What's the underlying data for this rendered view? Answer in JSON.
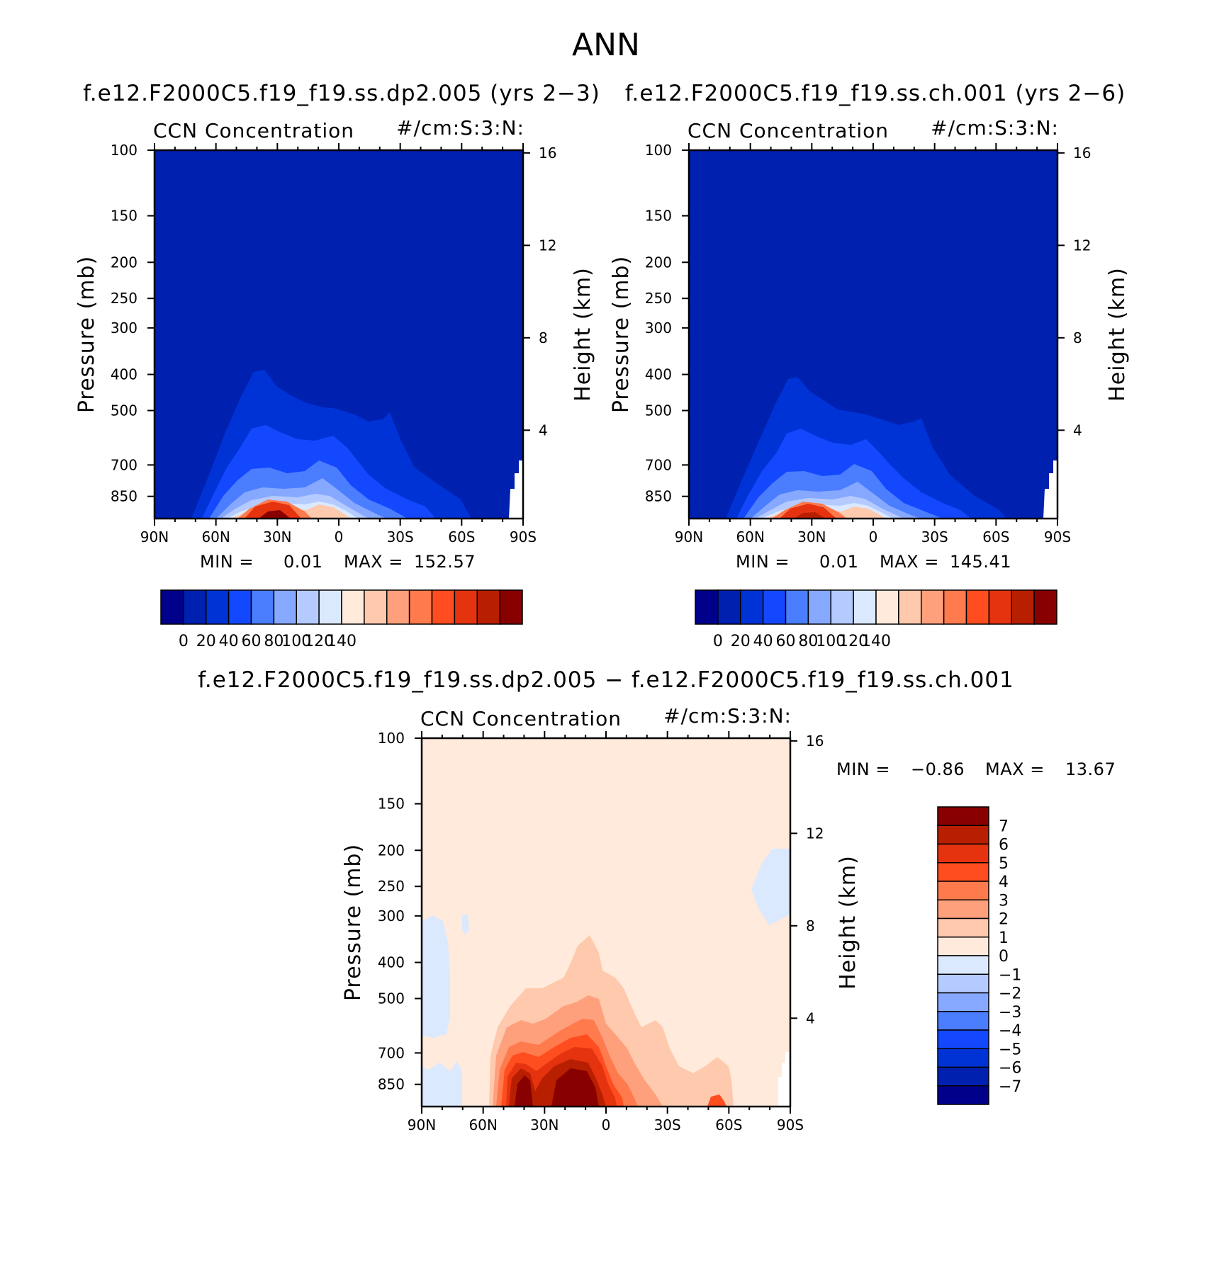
{
  "main_title": "ANN",
  "chart_data": [
    {
      "type": "contour",
      "id": "panel1",
      "case_title": "f.e12.F2000C5.f19_f19.ss.dp2.005 (yrs 2−3)",
      "variable": "CCN Concentration",
      "units": "#/cm:S:3:N:",
      "ylabel": "Pressure (mb)",
      "ylabel_right": "Height (km)",
      "xticks": [
        "90N",
        "60N",
        "30N",
        "0",
        "30S",
        "60S",
        "90S"
      ],
      "yticks": [
        "100",
        "150",
        "200",
        "250",
        "300",
        "400",
        "500",
        "700",
        "850"
      ],
      "yticks_right": [
        "16",
        "12",
        "8",
        "4"
      ],
      "stats": {
        "min_label": "MIN =",
        "min": "0.01",
        "max_label": "MAX =",
        "max": "152.57"
      },
      "colorbar_labels": [
        "0",
        "20",
        "40",
        "60",
        "80",
        "100",
        "120",
        "140"
      ],
      "colors": [
        "#00008a",
        "#0020b0",
        "#0033d6",
        "#1448ff",
        "#4b7dff",
        "#86a8ff",
        "#b5cbff",
        "#dbe9ff",
        "#ffeadb",
        "#ffc9ad",
        "#ffa07d",
        "#ff7a4d",
        "#ff4d1f",
        "#e6330f",
        "#b81f00",
        "#880000"
      ]
    },
    {
      "type": "contour",
      "id": "panel2",
      "case_title": "f.e12.F2000C5.f19_f19.ss.ch.001 (yrs 2−6)",
      "variable": "CCN Concentration",
      "units": "#/cm:S:3:N:",
      "ylabel": "Pressure (mb)",
      "ylabel_right": "Height (km)",
      "xticks": [
        "90N",
        "60N",
        "30N",
        "0",
        "30S",
        "60S",
        "90S"
      ],
      "yticks": [
        "100",
        "150",
        "200",
        "250",
        "300",
        "400",
        "500",
        "700",
        "850"
      ],
      "yticks_right": [
        "16",
        "12",
        "8",
        "4"
      ],
      "stats": {
        "min_label": "MIN =",
        "min": "0.01",
        "max_label": "MAX =",
        "max": "145.41"
      },
      "colorbar_labels": [
        "0",
        "20",
        "40",
        "60",
        "80",
        "100",
        "120",
        "140"
      ],
      "colors": [
        "#00008a",
        "#0020b0",
        "#0033d6",
        "#1448ff",
        "#4b7dff",
        "#86a8ff",
        "#b5cbff",
        "#dbe9ff",
        "#ffeadb",
        "#ffc9ad",
        "#ffa07d",
        "#ff7a4d",
        "#ff4d1f",
        "#e6330f",
        "#b81f00",
        "#880000"
      ]
    },
    {
      "type": "contour",
      "id": "panel3",
      "case_title": "f.e12.F2000C5.f19_f19.ss.dp2.005 − f.e12.F2000C5.f19_f19.ss.ch.001",
      "variable": "CCN Concentration",
      "units": "#/cm:S:3:N:",
      "ylabel": "Pressure (mb)",
      "ylabel_right": "Height (km)",
      "xticks": [
        "90N",
        "60N",
        "30N",
        "0",
        "30S",
        "60S",
        "90S"
      ],
      "yticks": [
        "100",
        "150",
        "200",
        "250",
        "300",
        "400",
        "500",
        "700",
        "850"
      ],
      "yticks_right": [
        "16",
        "12",
        "8",
        "4"
      ],
      "stats": {
        "min_label": "MIN =",
        "min": "−0.86",
        "max_label": "MAX =",
        "max": "13.67"
      },
      "colorbar_labels": [
        "7",
        "6",
        "5",
        "4",
        "3",
        "2",
        "1",
        "0",
        "−1",
        "−2",
        "−3",
        "−4",
        "−5",
        "−6",
        "−7"
      ],
      "colors": [
        "#880000",
        "#b81f00",
        "#e6330f",
        "#ff4d1f",
        "#ff7a4d",
        "#ffa07d",
        "#ffc9ad",
        "#ffeadb",
        "#dbe9ff",
        "#b5cbff",
        "#86a8ff",
        "#4b7dff",
        "#1448ff",
        "#0033d6",
        "#0020b0",
        "#00008a"
      ]
    }
  ]
}
